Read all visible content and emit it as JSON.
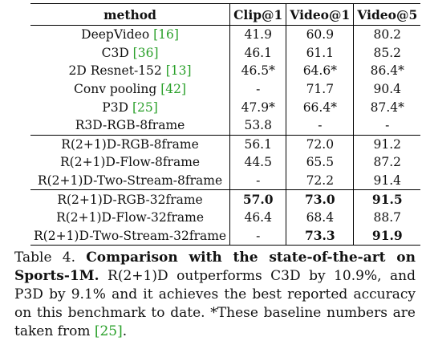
{
  "table": {
    "headers": [
      "method",
      "Clip@1",
      "Video@1",
      "Video@5"
    ],
    "groups": [
      [
        {
          "method": "DeepVideo ",
          "ref": "[16]",
          "clip": "41.9",
          "v1": "60.9",
          "v5": "80.2",
          "bold": []
        },
        {
          "method": "C3D ",
          "ref": "[36]",
          "clip": "46.1",
          "v1": "61.1",
          "v5": "85.2",
          "bold": []
        },
        {
          "method": "2D Resnet-152 ",
          "ref": "[13]",
          "clip": "46.5*",
          "v1": "64.6*",
          "v5": "86.4*",
          "bold": []
        },
        {
          "method": "Conv pooling ",
          "ref": "[42]",
          "clip": "-",
          "v1": "71.7",
          "v5": "90.4",
          "bold": []
        },
        {
          "method": "P3D ",
          "ref": "[25]",
          "clip": "47.9*",
          "v1": "66.4*",
          "v5": "87.4*",
          "bold": []
        },
        {
          "method": "R3D-RGB-8frame",
          "ref": "",
          "clip": "53.8",
          "v1": "-",
          "v5": "-",
          "bold": []
        }
      ],
      [
        {
          "method": "R(2+1)D-RGB-8frame",
          "ref": "",
          "clip": "56.1",
          "v1": "72.0",
          "v5": "91.2",
          "bold": []
        },
        {
          "method": "R(2+1)D-Flow-8frame",
          "ref": "",
          "clip": "44.5",
          "v1": "65.5",
          "v5": "87.2",
          "bold": []
        },
        {
          "method": "R(2+1)D-Two-Stream-8frame",
          "ref": "",
          "clip": "-",
          "v1": "72.2",
          "v5": "91.4",
          "bold": []
        }
      ],
      [
        {
          "method": "R(2+1)D-RGB-32frame",
          "ref": "",
          "clip": "57.0",
          "v1": "73.0",
          "v5": "91.5",
          "bold": [
            "clip",
            "v1",
            "v5"
          ]
        },
        {
          "method": "R(2+1)D-Flow-32frame",
          "ref": "",
          "clip": "46.4",
          "v1": "68.4",
          "v5": "88.7",
          "bold": []
        },
        {
          "method": "R(2+1)D-Two-Stream-32frame",
          "ref": "",
          "clip": "-",
          "v1": "73.3",
          "v5": "91.9",
          "bold": [
            "v1",
            "v5"
          ]
        }
      ]
    ]
  },
  "caption": {
    "label": "Table 4. ",
    "title": "Comparison with the state-of-the-art on Sports-1M.",
    "body": " R(2+1)D outperforms C3D by 10.9%, and P3D by 9.1% and it achieves the best reported accuracy on this benchmark to date. *These baseline numbers are taken from ",
    "ref": "[25]",
    "end": "."
  },
  "colors": {
    "reference_link": "#2aa02a"
  }
}
